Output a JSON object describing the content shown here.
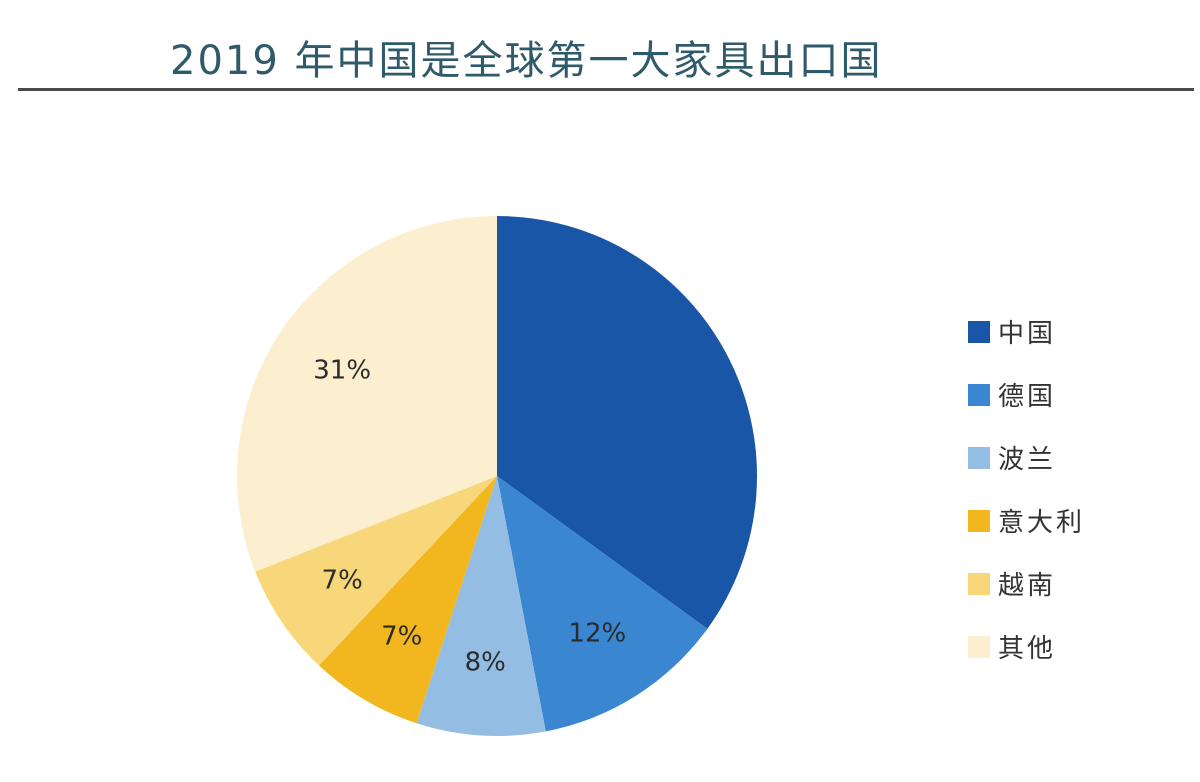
{
  "chart_data": {
    "type": "pie",
    "title": "2019 年中国是全球第一大家具出口国",
    "legend_position": "right",
    "slices": [
      {
        "name": "中国",
        "value": 35,
        "label": "",
        "color": "#1a56a8"
      },
      {
        "name": "德国",
        "value": 12,
        "label": "12%",
        "color": "#3a86d1"
      },
      {
        "name": "波兰",
        "value": 8,
        "label": "8%",
        "color": "#94bde3"
      },
      {
        "name": "意大利",
        "value": 7,
        "label": "7%",
        "color": "#f2b61e"
      },
      {
        "name": "越南",
        "value": 7,
        "label": "7%",
        "color": "#f7d77a"
      },
      {
        "name": "其他",
        "value": 31,
        "label": "31%",
        "color": "#fcefcf"
      }
    ]
  }
}
